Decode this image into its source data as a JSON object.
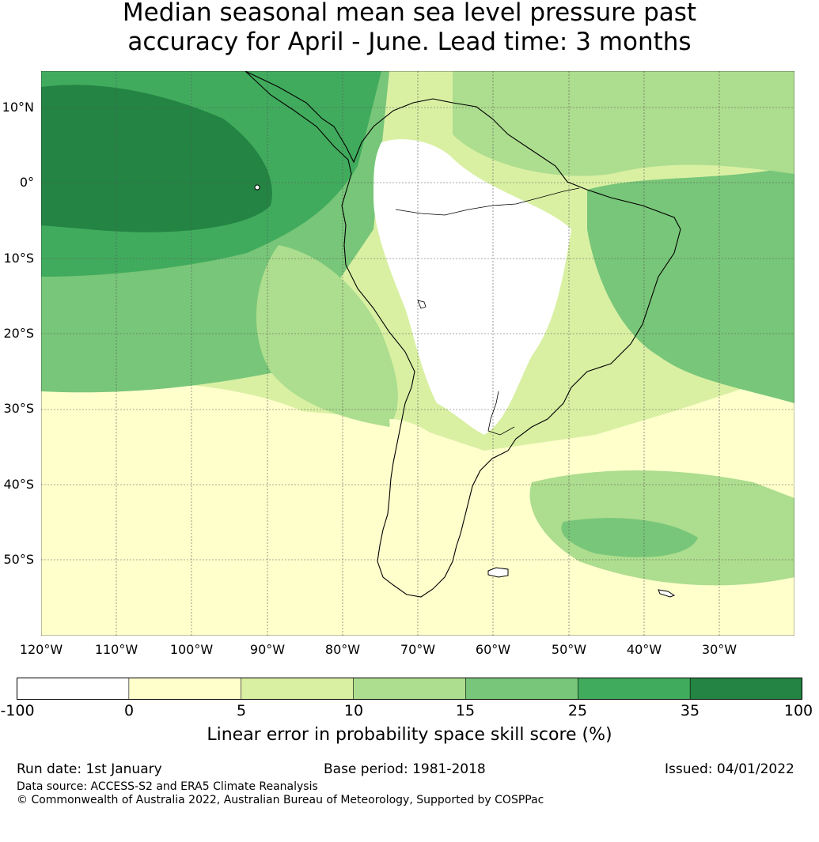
{
  "title_line1": "Median seasonal mean sea level pressure past",
  "title_line2": "accuracy for April - June. Lead time: 3 months",
  "lat_labels": [
    "10°N",
    "0°",
    "10°S",
    "20°S",
    "30°S",
    "40°S",
    "50°S"
  ],
  "lon_labels": [
    "120°W",
    "110°W",
    "100°W",
    "90°W",
    "80°W",
    "70°W",
    "60°W",
    "50°W",
    "40°W",
    "30°W"
  ],
  "colorbar": {
    "ticks": [
      "-100",
      "0",
      "5",
      "10",
      "15",
      "25",
      "35",
      "100"
    ],
    "colors": [
      "#ffffff",
      "#ffffcc",
      "#d9f0a3",
      "#addd8e",
      "#78c679",
      "#41ab5d",
      "#238443"
    ],
    "label": "Linear error in probability space skill score (%)"
  },
  "footer": {
    "run_date": "Run date: 1st January",
    "base_period": "Base period: 1981-2018",
    "issued": "Issued: 04/01/2022",
    "data_source": "Data source: ACCESS-S2 and ERA5 Climate Reanalysis",
    "copyright": "© Commonwealth of Australia 2022, Australian Bureau of Meteorology, Supported by COSPPac"
  }
}
